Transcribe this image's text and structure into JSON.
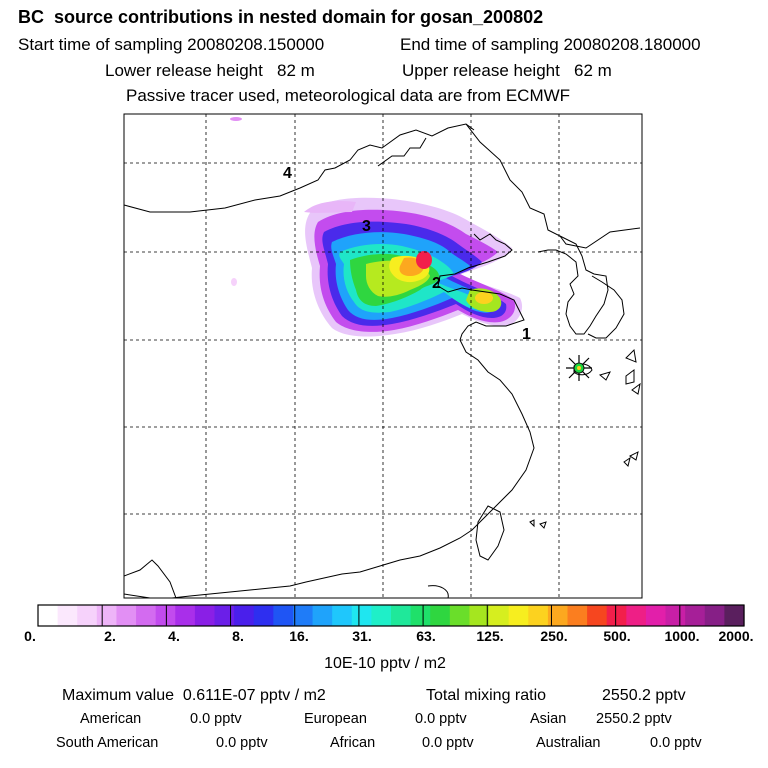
{
  "title": "BC  source contributions in nested domain for gosan_200802",
  "header": {
    "start_label": "Start time of sampling 20080208.150000",
    "end_label": "End time of sampling 20080208.180000",
    "lower_label": "Lower release height   82 m",
    "upper_label": "Upper release height   62 m",
    "tracer_note": "Passive tracer used, meteorological data are from ECMWF"
  },
  "map": {
    "markers": [
      "1",
      "2",
      "3",
      "4"
    ],
    "receptor_icon": "asterisk-star-icon"
  },
  "colorbar": {
    "ticks": [
      "0.",
      "2.",
      "4.",
      "8.",
      "16.",
      "31.",
      "63.",
      "125.",
      "250.",
      "500.",
      "1000.",
      "2000."
    ],
    "unit": "10E-10 pptv / m2",
    "colors": [
      "#ffffff",
      "#fbe8fd",
      "#f6d2fb",
      "#eeb4f8",
      "#e28ff4",
      "#d36bf0",
      "#c24bee",
      "#a92fea",
      "#8a1fe6",
      "#6b1fe8",
      "#4a1feb",
      "#2e2ff0",
      "#1f55f4",
      "#1f7cf8",
      "#1fa3fb",
      "#1fc7fc",
      "#1fe6f0",
      "#1fefc8",
      "#1fe89a",
      "#1fe06a",
      "#2fd640",
      "#6ade2a",
      "#a5e61f",
      "#d6ee1f",
      "#f7ee1f",
      "#fcd21f",
      "#fca81f",
      "#fb7e1f",
      "#f6461f",
      "#f21f4b",
      "#ee1f86",
      "#e21faa",
      "#c81fa6",
      "#a61f98",
      "#861f86",
      "#5a1f5e"
    ]
  },
  "stats": {
    "max_label": "Maximum value  0.611E-07 pptv / m2",
    "total_label": "Total mixing ratio",
    "total_value": "2550.2 pptv",
    "american_label": "American",
    "american_value": "0.0 pptv",
    "european_label": "European",
    "european_value": "0.0 pptv",
    "asian_label": "Asian",
    "asian_value": "2550.2 pptv",
    "south_american_label": "South American",
    "south_american_value": "0.0 pptv",
    "african_label": "African",
    "african_value": "0.0 pptv",
    "australian_label": "Australian",
    "australian_value": "0.0 pptv"
  }
}
